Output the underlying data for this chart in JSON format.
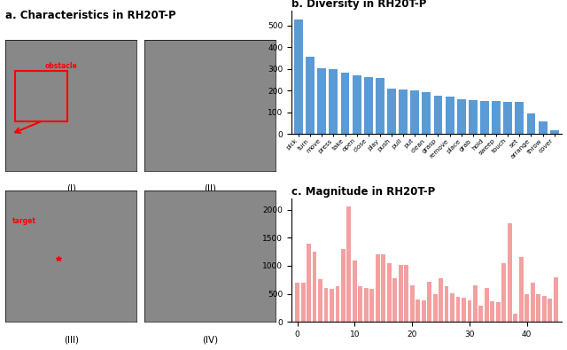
{
  "title_a": "a. Characteristics in RH20T-P",
  "title_b": "b. Diversity in RH20T-P",
  "title_c": "c. Magnitude in RH20T-P",
  "diversity_labels": [
    "pick",
    "turn",
    "move",
    "press",
    "take",
    "open",
    "close",
    "play",
    "push",
    "pull",
    "put",
    "clean",
    "grasp",
    "remove",
    "place",
    "grab",
    "hold",
    "sweep",
    "touch",
    "set",
    "arrange",
    "throw",
    "cover"
  ],
  "diversity_values": [
    530,
    358,
    302,
    298,
    285,
    270,
    262,
    258,
    208,
    207,
    203,
    195,
    178,
    172,
    162,
    155,
    152,
    151,
    150,
    148,
    97,
    57,
    18
  ],
  "diversity_color": "#5b9bd5",
  "magnitude_values": [
    700,
    700,
    1390,
    1250,
    760,
    600,
    590,
    640,
    1300,
    2060,
    1100,
    640,
    600,
    590,
    1200,
    1200,
    1050,
    780,
    1010,
    1010,
    660,
    400,
    380,
    710,
    500,
    780,
    630,
    510,
    450,
    430,
    380,
    650,
    290,
    600,
    370,
    350,
    1050,
    1750,
    150,
    1160,
    500,
    700,
    500,
    470,
    410,
    800
  ],
  "magnitude_color": "#f4a0a0",
  "bg_color": "#ffffff"
}
